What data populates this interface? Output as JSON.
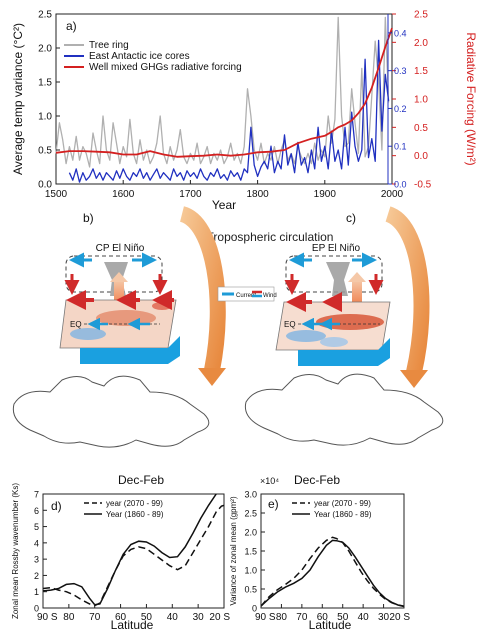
{
  "figure": {
    "middle_title": "Tropospheric circulation",
    "panel_b": {
      "tag": "b)",
      "title": "CP El Niño",
      "eq_label": "EQ",
      "legend_current": "Current",
      "legend_wind": "Wind",
      "colors": {
        "current": "#1e9bd7",
        "wind": "#d02a2a",
        "ocean": "#1aa0e0",
        "arc": "#f0a060"
      }
    },
    "panel_c": {
      "tag": "c)",
      "title": "EP El Niño",
      "eq_label": "EQ"
    }
  },
  "chart_data": [
    {
      "id": "a",
      "type": "line",
      "tag": "a)",
      "xlabel": "Year",
      "ylabel": "Average temp variance (°C²)",
      "y2label": "Radiative Forcing (W/m²)",
      "xlim": [
        1500,
        2000
      ],
      "ylim": [
        0,
        2.5
      ],
      "y2lim": [
        -0.5,
        2.5
      ],
      "y3lim": [
        0,
        0.45
      ],
      "xticks": [
        "1500",
        "1600",
        "1700",
        "1800",
        "1900",
        "2000"
      ],
      "yticks": [
        "0.0",
        "0.5",
        "1.0",
        "1.5",
        "2.0",
        "2.5"
      ],
      "y2ticks": [
        "-0.5",
        "0.0",
        "0.5",
        "1.0",
        "1.5",
        "2.0",
        "2.5"
      ],
      "y3ticks": [
        "0.0",
        "0.1",
        "0.2",
        "0.3",
        "0.4"
      ],
      "grid": false,
      "legend_position": "top-left",
      "colors": {
        "left_axis": "#222222",
        "right_axis": "#d42020",
        "inner_axis": "#2030c0"
      },
      "series": [
        {
          "name": "Tree ring",
          "axis": "left",
          "color": "#b0b0b0",
          "x": [
            1500,
            1505,
            1510,
            1515,
            1520,
            1525,
            1530,
            1535,
            1540,
            1545,
            1550,
            1555,
            1560,
            1565,
            1570,
            1575,
            1580,
            1585,
            1590,
            1595,
            1600,
            1605,
            1610,
            1615,
            1620,
            1625,
            1630,
            1635,
            1640,
            1645,
            1650,
            1655,
            1660,
            1665,
            1670,
            1675,
            1680,
            1685,
            1690,
            1695,
            1700,
            1705,
            1710,
            1715,
            1720,
            1725,
            1730,
            1735,
            1740,
            1745,
            1750,
            1755,
            1760,
            1765,
            1770,
            1775,
            1780,
            1785,
            1790,
            1795,
            1800,
            1805,
            1810,
            1815,
            1820,
            1825,
            1830,
            1835,
            1840,
            1845,
            1850,
            1855,
            1860,
            1865,
            1870,
            1875,
            1880,
            1885,
            1890,
            1895,
            1900,
            1905,
            1910,
            1915,
            1920,
            1925,
            1930,
            1935,
            1940,
            1945,
            1950,
            1955,
            1960,
            1965,
            1970,
            1975,
            1980,
            1985,
            1990,
            1995
          ],
          "values": [
            0.45,
            0.9,
            0.65,
            0.3,
            0.55,
            0.35,
            0.7,
            0.35,
            0.55,
            0.45,
            0.25,
            0.75,
            0.5,
            0.3,
            1.0,
            0.5,
            0.35,
            0.9,
            0.6,
            0.3,
            0.55,
            0.4,
            0.95,
            0.45,
            0.3,
            0.65,
            0.35,
            0.5,
            0.3,
            0.4,
            0.6,
            1.0,
            0.45,
            0.3,
            0.55,
            0.35,
            0.5,
            0.8,
            0.4,
            0.3,
            0.45,
            0.35,
            0.6,
            0.3,
            0.4,
            0.55,
            0.3,
            0.45,
            0.35,
            0.5,
            0.3,
            0.4,
            0.6,
            0.35,
            0.45,
            0.3,
            0.55,
            1.4,
            1.0,
            0.5,
            0.35,
            0.6,
            0.3,
            0.45,
            0.35,
            0.55,
            0.3,
            0.5,
            0.65,
            0.35,
            0.45,
            0.3,
            0.55,
            0.4,
            0.3,
            0.45,
            0.3,
            0.6,
            0.35,
            0.5,
            0.4,
            1.0,
            0.6,
            0.95,
            2.45,
            1.0,
            0.55,
            0.6,
            1.4,
            0.9,
            0.45,
            1.7,
            0.4,
            0.55,
            1.3,
            2.1,
            1.5,
            0.5,
            2.45,
            1.2
          ]
        },
        {
          "name": "East Antactic ice cores",
          "axis": "inner",
          "color": "#2030c0",
          "x": [
            1520,
            1525,
            1530,
            1535,
            1540,
            1545,
            1550,
            1555,
            1560,
            1565,
            1570,
            1575,
            1580,
            1585,
            1590,
            1595,
            1600,
            1605,
            1610,
            1615,
            1620,
            1625,
            1630,
            1635,
            1640,
            1645,
            1650,
            1655,
            1660,
            1665,
            1670,
            1675,
            1680,
            1685,
            1690,
            1695,
            1700,
            1705,
            1710,
            1715,
            1720,
            1725,
            1730,
            1735,
            1740,
            1745,
            1750,
            1755,
            1760,
            1765,
            1770,
            1775,
            1780,
            1785,
            1790,
            1795,
            1800,
            1805,
            1810,
            1815,
            1820,
            1825,
            1830,
            1835,
            1840,
            1845,
            1850,
            1855,
            1860,
            1865,
            1870,
            1875,
            1880,
            1885,
            1890,
            1895,
            1900,
            1905,
            1910,
            1915,
            1920,
            1925,
            1930,
            1935,
            1940,
            1945,
            1950,
            1955,
            1960,
            1965,
            1970,
            1975,
            1980,
            1985,
            1990,
            1995
          ],
          "values": [
            0.03,
            0.01,
            0.04,
            0.005,
            0.03,
            0.01,
            0.02,
            0.04,
            0.015,
            0.03,
            0.01,
            0.03,
            0.02,
            0.01,
            0.035,
            0.015,
            0.04,
            0.02,
            0.01,
            0.03,
            0.02,
            0.04,
            0.015,
            0.03,
            0.01,
            0.025,
            0.04,
            0.015,
            0.03,
            0.02,
            0.01,
            0.04,
            0.02,
            0.03,
            0.01,
            0.035,
            0.02,
            0.03,
            0.015,
            0.04,
            0.02,
            0.01,
            0.03,
            0.02,
            0.04,
            0.015,
            0.025,
            0.01,
            0.035,
            0.02,
            0.03,
            0.01,
            0.04,
            0.03,
            0.15,
            0.05,
            0.02,
            0.045,
            0.06,
            0.04,
            0.1,
            0.03,
            0.06,
            0.04,
            0.13,
            0.05,
            0.08,
            0.03,
            0.11,
            0.05,
            0.07,
            0.03,
            0.09,
            0.04,
            0.15,
            0.06,
            0.1,
            0.04,
            0.14,
            0.06,
            0.09,
            0.04,
            0.15,
            0.05,
            0.19,
            0.1,
            0.06,
            0.09,
            0.33,
            0.07,
            0.12,
            0.06,
            0.38,
            0.14,
            0.29,
            0.22
          ]
        },
        {
          "name": "Well mixed GHGs radiative forcing",
          "axis": "right",
          "color": "#d42020",
          "x": [
            1500,
            1520,
            1540,
            1560,
            1580,
            1600,
            1620,
            1640,
            1660,
            1680,
            1700,
            1720,
            1740,
            1760,
            1780,
            1800,
            1820,
            1840,
            1860,
            1880,
            1900,
            1910,
            1920,
            1930,
            1940,
            1950,
            1960,
            1970,
            1980,
            1990,
            2000
          ],
          "values": [
            0.05,
            0.08,
            0.08,
            0.07,
            0.06,
            0.02,
            0.02,
            0.08,
            0.02,
            -0.02,
            -0.01,
            0.0,
            0.02,
            0.0,
            0.02,
            0.06,
            0.07,
            0.1,
            0.22,
            0.3,
            0.35,
            0.42,
            0.5,
            0.55,
            0.62,
            0.75,
            0.92,
            1.2,
            1.55,
            1.92,
            2.25
          ]
        }
      ]
    },
    {
      "id": "d",
      "type": "line",
      "tag": "d)",
      "title": "Dec-Feb",
      "xlabel": "Latitude",
      "ylabel": "Zonal mean Rossby wavenumber (Ks)",
      "xlim": [
        90,
        20
      ],
      "ylim": [
        0,
        7
      ],
      "xticks": [
        "90 S",
        "80",
        "70",
        "60",
        "50",
        "40",
        "30",
        "20 S"
      ],
      "yticks": [
        "0",
        "1",
        "2",
        "3",
        "4",
        "5",
        "6",
        "7"
      ],
      "grid": false,
      "legend_position": "top-left",
      "series": [
        {
          "name": "year (2070 - 99)",
          "style": "dashed",
          "color": "#111111",
          "x": [
            90,
            87,
            84,
            81,
            78,
            75,
            72,
            70,
            68,
            65,
            62,
            59,
            56,
            53,
            50,
            47,
            44,
            41,
            38,
            35,
            32,
            29,
            26,
            23,
            21,
            20
          ],
          "values": [
            1.2,
            1.25,
            1.1,
            1.0,
            0.8,
            0.5,
            0.25,
            0.15,
            0.3,
            1.3,
            2.3,
            3.2,
            3.6,
            3.75,
            3.65,
            3.3,
            2.95,
            2.6,
            2.35,
            2.6,
            3.4,
            4.2,
            5.0,
            5.9,
            6.25,
            6.3
          ]
        },
        {
          "name": "Year (1860 - 89)",
          "style": "solid",
          "color": "#111111",
          "x": [
            90,
            87,
            84,
            81,
            78,
            75,
            72,
            70,
            68,
            65,
            62,
            59,
            56,
            53,
            50,
            47,
            44,
            41,
            38,
            35,
            32,
            29,
            26,
            23,
            21,
            20
          ],
          "values": [
            1.05,
            1.1,
            1.2,
            1.45,
            1.5,
            1.3,
            0.6,
            0.2,
            0.25,
            1.2,
            2.3,
            3.3,
            3.9,
            4.1,
            4.05,
            3.8,
            3.4,
            3.1,
            3.15,
            3.75,
            4.6,
            5.5,
            6.3,
            7.0,
            7.3,
            7.4
          ]
        }
      ]
    },
    {
      "id": "e",
      "type": "line",
      "tag": "e)",
      "title": "Dec-Feb",
      "scale_label": "×10⁴",
      "xlabel": "Latitude",
      "ylabel": "Variance of zonal mean (gpm²)",
      "xlim": [
        90,
        20
      ],
      "ylim": [
        0,
        3.0
      ],
      "xticks": [
        "90 S",
        "80",
        "70",
        "60",
        "50",
        "40",
        "30",
        "20 S"
      ],
      "yticks": [
        "0",
        "0.5",
        "1.0",
        "1.5",
        "2.0",
        "2.5",
        "3.0"
      ],
      "grid": false,
      "legend_position": "top-left",
      "series": [
        {
          "name": "year (2070 - 99)",
          "style": "dashed",
          "color": "#111111",
          "x": [
            90,
            86,
            82,
            78,
            74,
            70,
            66,
            62,
            58,
            55,
            53,
            50,
            47,
            44,
            41,
            38,
            35,
            32,
            29,
            26,
            23,
            20
          ],
          "values": [
            0.05,
            0.3,
            0.48,
            0.62,
            0.78,
            1.0,
            1.3,
            1.58,
            1.78,
            1.86,
            1.83,
            1.72,
            1.5,
            1.22,
            0.95,
            0.72,
            0.52,
            0.36,
            0.23,
            0.14,
            0.08,
            0.05
          ]
        },
        {
          "name": "Year (1860 - 89)",
          "style": "solid",
          "color": "#111111",
          "x": [
            90,
            86,
            82,
            78,
            74,
            70,
            66,
            62,
            58,
            55,
            53,
            50,
            47,
            44,
            41,
            38,
            35,
            32,
            29,
            26,
            23,
            20
          ],
          "values": [
            0.05,
            0.25,
            0.42,
            0.55,
            0.65,
            0.78,
            1.0,
            1.35,
            1.65,
            1.78,
            1.77,
            1.73,
            1.58,
            1.35,
            1.1,
            0.85,
            0.6,
            0.4,
            0.25,
            0.15,
            0.08,
            0.04
          ]
        }
      ]
    }
  ]
}
